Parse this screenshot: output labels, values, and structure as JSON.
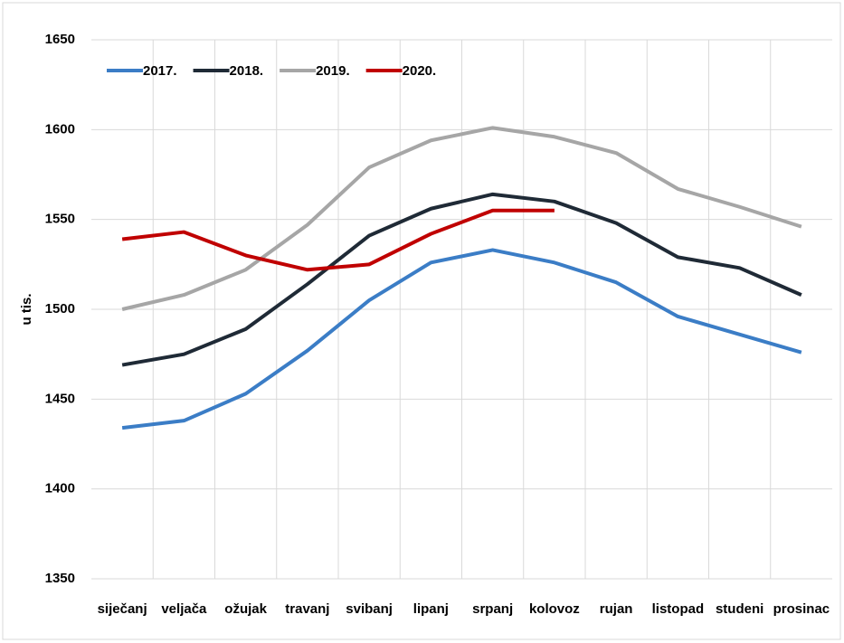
{
  "chart_data": {
    "type": "line",
    "ylabel": "u tis.",
    "categories": [
      "siječanj",
      "veljača",
      "ožujak",
      "travanj",
      "svibanj",
      "lipanj",
      "srpanj",
      "kolovoz",
      "rujan",
      "listopad",
      "studeni",
      "prosinac"
    ],
    "series": [
      {
        "name": "2017.",
        "color": "#3b7dc6",
        "values": [
          1434,
          1438,
          1453,
          1477,
          1505,
          1526,
          1533,
          1526,
          1515,
          1496,
          1486,
          1476
        ]
      },
      {
        "name": "2018.",
        "color": "#1f2a36",
        "values": [
          1469,
          1475,
          1489,
          1514,
          1541,
          1556,
          1564,
          1560,
          1548,
          1529,
          1523,
          1508
        ]
      },
      {
        "name": "2019.",
        "color": "#a6a6a6",
        "values": [
          1500,
          1508,
          1522,
          1547,
          1579,
          1594,
          1601,
          1596,
          1587,
          1567,
          1557,
          1546
        ]
      },
      {
        "name": "2020.",
        "color": "#c00000",
        "values": [
          1539,
          1543,
          1530,
          1522,
          1525,
          1542,
          1555,
          1555,
          null,
          null,
          null,
          null
        ]
      }
    ],
    "ylim": [
      1350,
      1650
    ],
    "yticks": [
      1350,
      1400,
      1450,
      1500,
      1550,
      1600,
      1650
    ],
    "grid": true,
    "legend": "top-left"
  }
}
